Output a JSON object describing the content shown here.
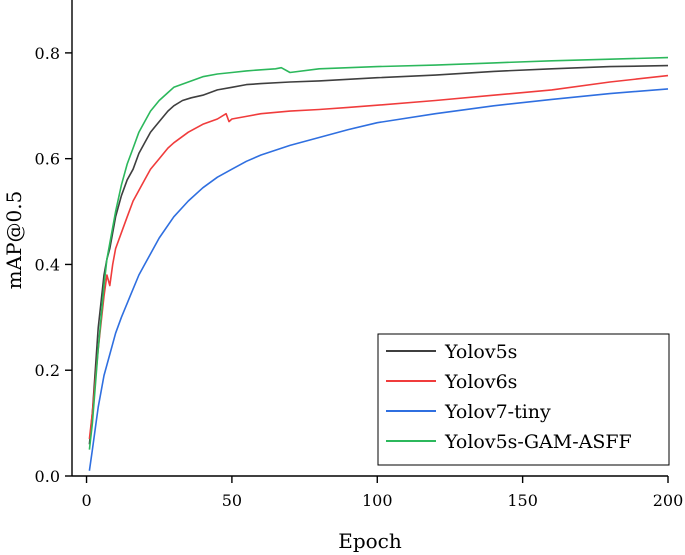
{
  "chart_data": {
    "type": "line",
    "title": "",
    "xlabel": "Epoch",
    "ylabel": "mAP@0.5",
    "xlim": [
      -5,
      200
    ],
    "ylim": [
      0,
      0.9
    ],
    "xticks": [
      0,
      50,
      100,
      150,
      200
    ],
    "xtick_labels": [
      "0",
      "50",
      "100",
      "150",
      "200"
    ],
    "yticks": [
      0.0,
      0.2,
      0.4,
      0.6,
      0.8
    ],
    "ytick_labels": [
      "0.0",
      "0.2",
      "0.4",
      "0.6",
      "0.8"
    ],
    "grid": false,
    "legend_position": "bottom-right",
    "series": [
      {
        "name": "Yolov5s",
        "color": "#3f3f3f",
        "x": [
          1,
          2,
          3,
          4,
          5,
          6,
          7,
          8,
          9,
          10,
          12,
          14,
          16,
          18,
          20,
          22,
          25,
          28,
          30,
          33,
          36,
          40,
          45,
          50,
          55,
          60,
          70,
          80,
          90,
          100,
          120,
          140,
          160,
          180,
          200
        ],
        "y": [
          0.06,
          0.12,
          0.2,
          0.28,
          0.33,
          0.38,
          0.41,
          0.43,
          0.46,
          0.49,
          0.53,
          0.56,
          0.58,
          0.61,
          0.63,
          0.65,
          0.67,
          0.69,
          0.7,
          0.71,
          0.715,
          0.72,
          0.73,
          0.735,
          0.74,
          0.742,
          0.745,
          0.747,
          0.75,
          0.753,
          0.758,
          0.765,
          0.77,
          0.774,
          0.776
        ]
      },
      {
        "name": "Yolov6s",
        "color": "#f03c3c",
        "x": [
          1,
          2,
          3,
          4,
          5,
          6,
          7,
          8,
          9,
          10,
          12,
          14,
          16,
          18,
          20,
          22,
          25,
          28,
          30,
          35,
          40,
          45,
          48,
          49,
          50,
          55,
          60,
          70,
          80,
          90,
          100,
          120,
          140,
          160,
          180,
          200
        ],
        "y": [
          0.07,
          0.12,
          0.18,
          0.24,
          0.29,
          0.34,
          0.38,
          0.36,
          0.4,
          0.43,
          0.46,
          0.49,
          0.52,
          0.54,
          0.56,
          0.58,
          0.6,
          0.62,
          0.63,
          0.65,
          0.665,
          0.675,
          0.685,
          0.67,
          0.675,
          0.68,
          0.685,
          0.69,
          0.693,
          0.697,
          0.701,
          0.71,
          0.72,
          0.73,
          0.745,
          0.757
        ]
      },
      {
        "name": "Yolov7-tiny",
        "color": "#2f6fe0",
        "x": [
          1,
          2,
          3,
          4,
          5,
          6,
          7,
          8,
          9,
          10,
          12,
          15,
          18,
          20,
          25,
          30,
          35,
          40,
          45,
          50,
          55,
          60,
          70,
          80,
          90,
          100,
          120,
          140,
          160,
          180,
          200
        ],
        "y": [
          0.01,
          0.05,
          0.09,
          0.13,
          0.16,
          0.19,
          0.21,
          0.23,
          0.25,
          0.27,
          0.3,
          0.34,
          0.38,
          0.4,
          0.45,
          0.49,
          0.52,
          0.545,
          0.565,
          0.58,
          0.595,
          0.607,
          0.625,
          0.64,
          0.655,
          0.668,
          0.685,
          0.7,
          0.712,
          0.723,
          0.732
        ]
      },
      {
        "name": "Yolov5s-GAM-ASFF",
        "color": "#2cb85c",
        "x": [
          1,
          2,
          3,
          4,
          5,
          6,
          7,
          8,
          9,
          10,
          12,
          14,
          16,
          18,
          20,
          22,
          25,
          28,
          30,
          35,
          40,
          45,
          50,
          55,
          60,
          65,
          67,
          70,
          80,
          90,
          100,
          120,
          140,
          160,
          180,
          200
        ],
        "y": [
          0.05,
          0.1,
          0.17,
          0.24,
          0.3,
          0.36,
          0.41,
          0.44,
          0.47,
          0.5,
          0.55,
          0.59,
          0.62,
          0.65,
          0.67,
          0.69,
          0.71,
          0.725,
          0.735,
          0.745,
          0.755,
          0.76,
          0.763,
          0.766,
          0.768,
          0.77,
          0.772,
          0.763,
          0.77,
          0.772,
          0.774,
          0.777,
          0.781,
          0.785,
          0.788,
          0.791
        ]
      }
    ]
  }
}
